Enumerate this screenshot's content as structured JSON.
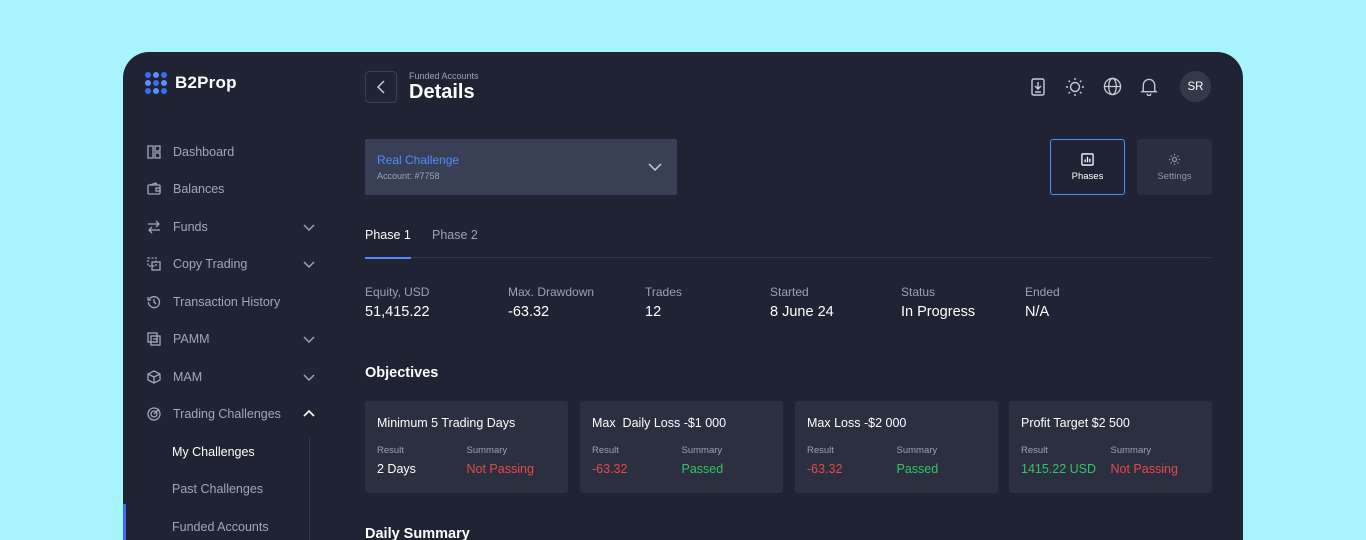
{
  "app": {
    "name": "B2Prop"
  },
  "header": {
    "breadcrumb": "Funded Accounts",
    "title": "Details",
    "avatar_initials": "SR"
  },
  "sidebar": {
    "items": [
      {
        "label": "Dashboard",
        "icon": "dashboard-icon"
      },
      {
        "label": "Balances",
        "icon": "wallet-icon"
      },
      {
        "label": "Funds",
        "icon": "transfer-icon",
        "expandable": true
      },
      {
        "label": "Copy Trading",
        "icon": "copy-trading-icon",
        "expandable": true
      },
      {
        "label": "Transaction History",
        "icon": "history-icon"
      },
      {
        "label": "PAMM",
        "icon": "pamm-icon",
        "expandable": true
      },
      {
        "label": "MAM",
        "icon": "cube-icon",
        "expandable": true
      },
      {
        "label": "Trading Challenges",
        "icon": "target-icon",
        "expanded": true
      }
    ],
    "sub_items": [
      {
        "label": "My Challenges"
      },
      {
        "label": "Past Challenges"
      },
      {
        "label": "Funded Accounts"
      }
    ]
  },
  "account": {
    "name": "Real Challenge",
    "number": "Account: #7758"
  },
  "views": {
    "phases_label": "Phases",
    "settings_label": "Settings"
  },
  "tabs": [
    {
      "label": "Phase 1",
      "active": true
    },
    {
      "label": "Phase 2",
      "active": false
    }
  ],
  "stats": [
    {
      "label": "Equity, USD",
      "value": "51,415.22"
    },
    {
      "label": "Max. Drawdown",
      "value": "-63.32"
    },
    {
      "label": "Trades",
      "value": "12"
    },
    {
      "label": "Started",
      "value": "8 June 24"
    },
    {
      "label": "Status",
      "value": "In Progress"
    },
    {
      "label": "Ended",
      "value": "N/A"
    }
  ],
  "objectives": {
    "title": "Objectives",
    "result_label": "Result",
    "summary_label": "Summary",
    "cards": [
      {
        "title": "Minimum 5 Trading Days",
        "result": "2 Days",
        "result_color": "white",
        "summary": "Not Passing",
        "summary_color": "red"
      },
      {
        "title": "Max  Daily Loss -$1 000",
        "result": "-63.32",
        "result_color": "red",
        "summary": "Passed",
        "summary_color": "green"
      },
      {
        "title": "Max Loss -$2 000",
        "result": "-63.32",
        "result_color": "red",
        "summary": "Passed",
        "summary_color": "green"
      },
      {
        "title": "Profit Target $2 500",
        "result": "1415.22 USD",
        "result_color": "green",
        "summary": "Not Passing",
        "summary_color": "red"
      }
    ]
  },
  "daily_summary": {
    "title": "Daily Summary"
  },
  "colors": {
    "background": "#a8f4fc",
    "panel": "#1f2333",
    "accent": "#4f8df9",
    "danger": "#e5484d",
    "success": "#33c26a"
  }
}
